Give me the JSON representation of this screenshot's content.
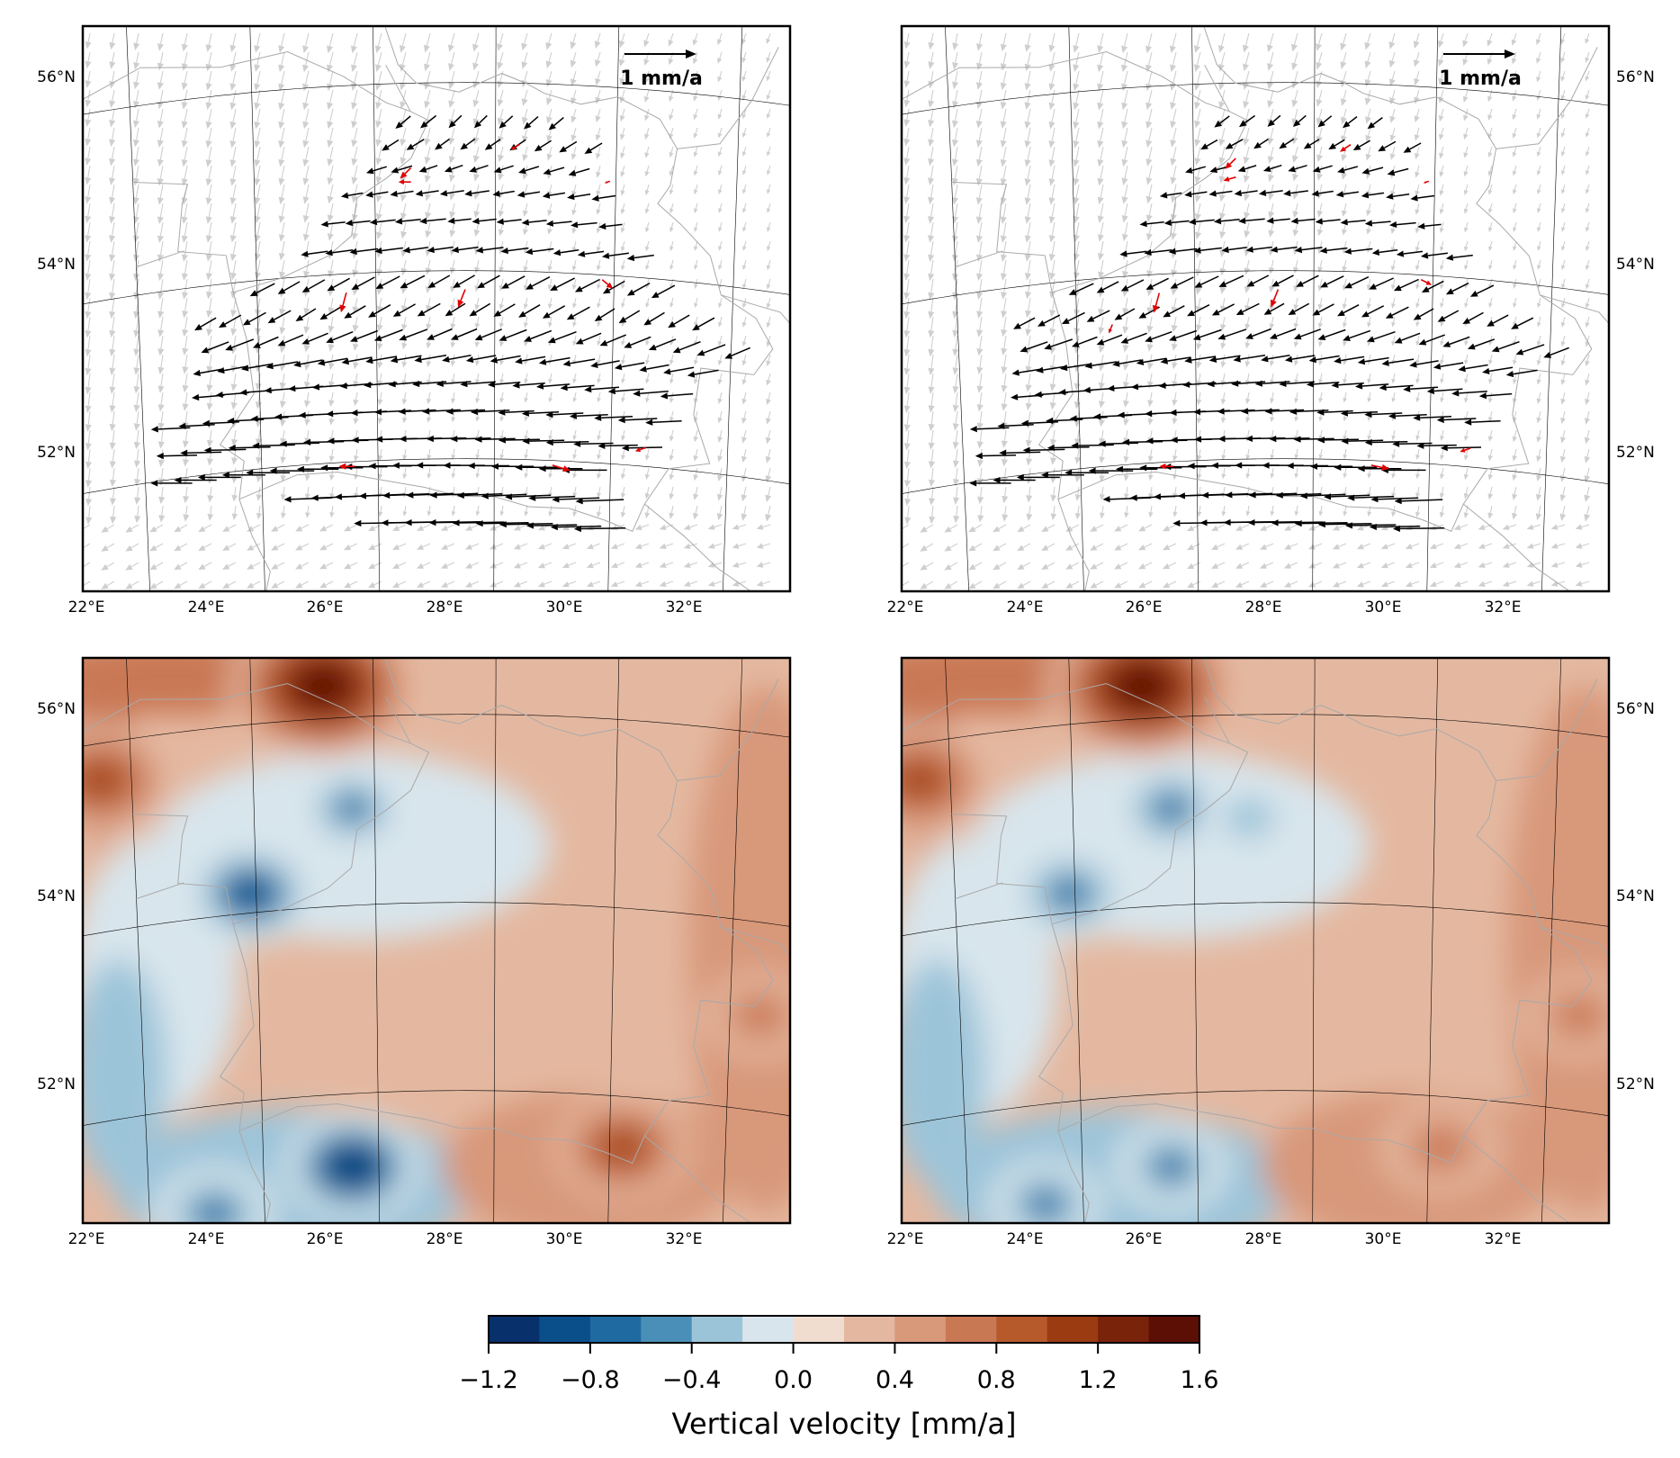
{
  "colors": {
    "frame": "#000000",
    "graticule": "#000000",
    "borders": "#a9a9a9",
    "background_vectors": "#cfcfcf",
    "station_vectors": "#000000",
    "outlier_vectors": "#e00000",
    "colormap": [
      "#08306b",
      "#0b4f8a",
      "#1f6aa0",
      "#4a8fb7",
      "#9cc4d9",
      "#d8e5ec",
      "#f1ddd0",
      "#e4b8a0",
      "#d8987a",
      "#c97854",
      "#b65a2c",
      "#9a3b12",
      "#7a230b",
      "#5c0f05"
    ]
  },
  "map": {
    "lon_ticks": [
      "22°E",
      "24°E",
      "26°E",
      "28°E",
      "30°E",
      "32°E"
    ],
    "lat_ticks": [
      "56°N",
      "54°N",
      "52°N"
    ]
  },
  "panels": {
    "top_left": {
      "type": "horizontal-velocity-field",
      "scale_arrow_label": "1 mm/a"
    },
    "top_right": {
      "type": "horizontal-velocity-field",
      "scale_arrow_label": "1 mm/a"
    },
    "bottom_left": {
      "type": "vertical-velocity-contour"
    },
    "bottom_right": {
      "type": "vertical-velocity-contour"
    }
  },
  "colorbar": {
    "label": "Vertical velocity [mm/a]",
    "range": [
      -1.2,
      1.6
    ],
    "levels": 14,
    "tick_values": [
      "−1.2",
      "−0.8",
      "−0.4",
      "0.0",
      "0.4",
      "0.8",
      "1.2",
      "1.6"
    ]
  },
  "chart_data": [
    {
      "type": "map-vector-field",
      "panel": "top_left",
      "extent": {
        "lon": [
          22,
          33.8
        ],
        "lat": [
          50.6,
          56.6
        ]
      },
      "variable": "horizontal velocity",
      "units": "mm/a",
      "reference_vector": 1.0,
      "vector_direction": "predominantly westward (W to WSW)",
      "highlighted_outliers_count": 10
    },
    {
      "type": "map-vector-field",
      "panel": "top_right",
      "extent": {
        "lon": [
          22,
          33.8
        ],
        "lat": [
          50.6,
          56.6
        ]
      },
      "variable": "horizontal velocity",
      "units": "mm/a",
      "reference_vector": 1.0,
      "vector_direction": "predominantly westward (W to WSW)",
      "highlighted_outliers_count": 11
    },
    {
      "type": "heatmap",
      "panel": "bottom_left",
      "extent": {
        "lon": [
          22,
          33.8
        ],
        "lat": [
          50.6,
          56.6
        ]
      },
      "variable": "vertical velocity",
      "units": "mm/a",
      "value_range": [
        -1.2,
        1.6
      ],
      "features": [
        {
          "lon": 26.0,
          "lat": 56.3,
          "value": 1.5
        },
        {
          "lon": 22.3,
          "lat": 55.3,
          "value": 1.0
        },
        {
          "lon": 24.8,
          "lat": 54.1,
          "value": -0.8
        },
        {
          "lon": 26.5,
          "lat": 55.0,
          "value": -0.5
        },
        {
          "lon": 26.5,
          "lat": 51.2,
          "value": -0.9
        },
        {
          "lon": 24.2,
          "lat": 50.7,
          "value": -0.7
        },
        {
          "lon": 31.0,
          "lat": 51.4,
          "value": 0.9
        },
        {
          "lon": 33.3,
          "lat": 52.8,
          "value": 0.6
        }
      ]
    },
    {
      "type": "heatmap",
      "panel": "bottom_right",
      "extent": {
        "lon": [
          22,
          33.8
        ],
        "lat": [
          50.6,
          56.6
        ]
      },
      "variable": "vertical velocity",
      "units": "mm/a",
      "value_range": [
        -1.2,
        1.6
      ],
      "features": [
        {
          "lon": 26.0,
          "lat": 56.3,
          "value": 1.5
        },
        {
          "lon": 22.3,
          "lat": 55.3,
          "value": 1.0
        },
        {
          "lon": 24.8,
          "lat": 54.1,
          "value": -0.7
        },
        {
          "lon": 26.5,
          "lat": 55.0,
          "value": -0.6
        },
        {
          "lon": 27.8,
          "lat": 54.9,
          "value": -0.4
        },
        {
          "lon": 24.4,
          "lat": 50.8,
          "value": -0.6
        },
        {
          "lon": 26.5,
          "lat": 51.2,
          "value": -0.6
        },
        {
          "lon": 31.0,
          "lat": 51.4,
          "value": 0.7
        },
        {
          "lon": 33.3,
          "lat": 52.8,
          "value": 0.6
        }
      ]
    }
  ]
}
